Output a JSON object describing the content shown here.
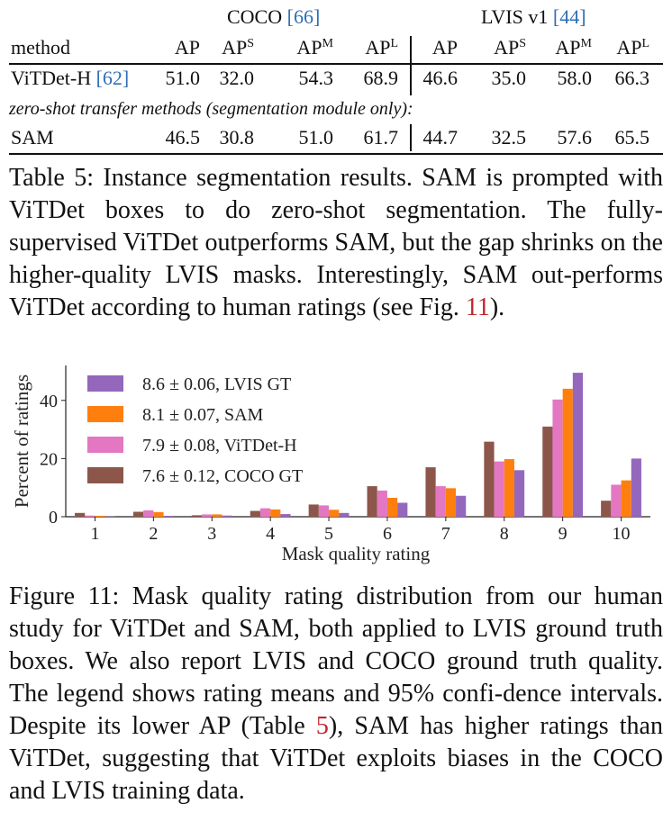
{
  "table": {
    "group_coco": "COCO",
    "group_coco_ref": "[66]",
    "group_lvis": "LVIS v1",
    "group_lvis_ref": "[44]",
    "method_header": "method",
    "ap": "AP",
    "sup_s": "S",
    "sup_m": "M",
    "sup_l": "L",
    "rows": [
      {
        "method": "ViTDet-H",
        "ref": "[62]",
        "values": [
          "51.0",
          "32.0",
          "54.3",
          "68.9",
          "46.6",
          "35.0",
          "58.0",
          "66.3"
        ]
      },
      {
        "method": "SAM",
        "ref": "",
        "values": [
          "46.5",
          "30.8",
          "51.0",
          "61.7",
          "44.7",
          "32.5",
          "57.6",
          "65.5"
        ]
      }
    ],
    "zero_shot_label": "zero-shot transfer methods (segmentation module only):"
  },
  "table_caption": {
    "lead": "Table 5: Instance segmentation results.  SAM is prompted with ViTDet boxes to do zero-shot segmentation. The fully-supervised ViTDet outperforms SAM, but the gap shrinks on the higher-quality LVIS masks. Interestingly, SAM out-performs ViTDet according to human ratings (see Fig. ",
    "ref": "11",
    "tail": ")."
  },
  "chart_data": {
    "type": "bar",
    "title": "",
    "xlabel": "Mask quality rating",
    "ylabel": "Percent of ratings",
    "categories": [
      "1",
      "2",
      "3",
      "4",
      "5",
      "6",
      "7",
      "8",
      "9",
      "10"
    ],
    "ylim": [
      0,
      52
    ],
    "yticks": [
      "0",
      "20",
      "40"
    ],
    "grid": false,
    "legend_position": "top-left",
    "series": [
      {
        "name": "7.6 ± 0.12, COCO GT",
        "color": "#8c564b",
        "values": [
          1.3,
          1.7,
          0.5,
          2.0,
          4.2,
          10.5,
          17.0,
          25.8,
          31.0,
          5.5
        ]
      },
      {
        "name": "7.9 ± 0.08, ViTDet-H",
        "color": "#e377c2",
        "values": [
          0.4,
          2.2,
          0.8,
          2.9,
          3.9,
          9.0,
          10.5,
          19.0,
          40.3,
          11.0
        ]
      },
      {
        "name": "8.1 ± 0.07, SAM",
        "color": "#ff7f0e",
        "values": [
          0.3,
          1.6,
          0.8,
          2.5,
          2.4,
          6.5,
          9.8,
          19.8,
          44.0,
          12.5
        ]
      },
      {
        "name": "8.6 ± 0.06, LVIS GT",
        "color": "#9467bd",
        "values": [
          0.1,
          0.3,
          0.4,
          0.9,
          1.3,
          4.8,
          7.2,
          16.0,
          49.5,
          20.0
        ]
      }
    ]
  },
  "figure_caption": {
    "lead": "Figure 11: Mask quality rating distribution from our human study for ViTDet and SAM, both applied to LVIS ground truth boxes. We also report LVIS and COCO ground truth quality.  The legend shows rating means and 95% confi-dence intervals. Despite its lower AP (Table ",
    "ref": "5",
    "tail": "), SAM has higher ratings than ViTDet, suggesting that ViTDet exploits biases in the COCO and LVIS training data."
  }
}
